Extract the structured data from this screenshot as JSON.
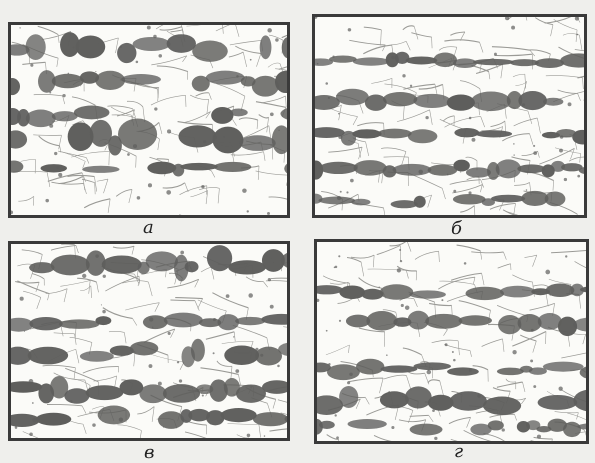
{
  "panels": [
    {
      "id": "a",
      "caption": "а"
    },
    {
      "id": "b",
      "caption": "б"
    },
    {
      "id": "c",
      "caption": "в"
    },
    {
      "id": "d",
      "caption": "г"
    }
  ],
  "colors": {
    "background": "#efefec",
    "grain": "#fbfbf8",
    "boundary": "#9a9a96",
    "band": "#5e5e5c",
    "frame": "#3a3a3a"
  }
}
